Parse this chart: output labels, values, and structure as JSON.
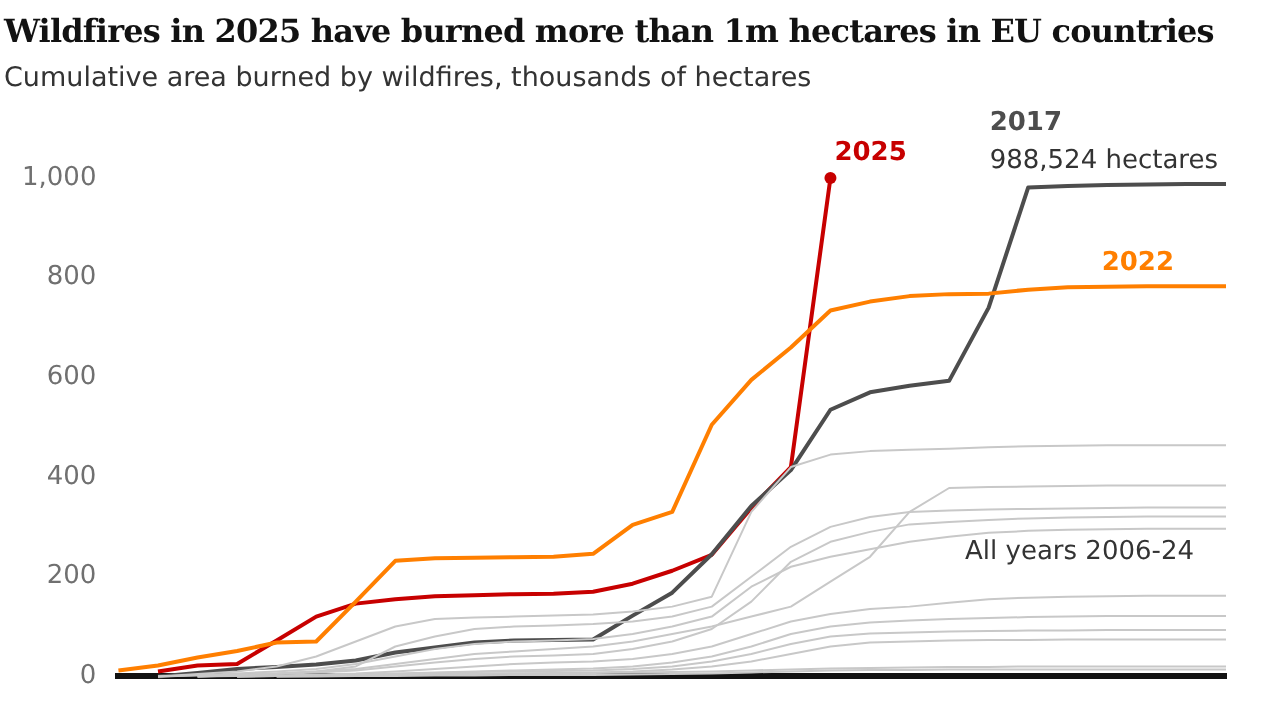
{
  "chart_data": {
    "type": "line",
    "title": "Wildfires in 2025 have burned more than 1m hectares in EU countries",
    "subtitle": "Cumulative area burned by wildfires, thousands of hectares",
    "categories": [
      null,
      null,
      null,
      null,
      null,
      null,
      null,
      null,
      null,
      null,
      null,
      null,
      null,
      null,
      null,
      null,
      null,
      null,
      null,
      null,
      null,
      null,
      null,
      null,
      null,
      null,
      null,
      null,
      null
    ],
    "ylim": [
      0,
      1000
    ],
    "yticks": [
      0,
      200,
      400,
      600,
      800,
      {
        "value": 1000,
        "label": "1,000"
      }
    ],
    "annotations": [
      {
        "text": "988,524 hectares",
        "y": 988
      },
      "All years 2006-24"
    ],
    "series": [
      {
        "color": "#c8c8c8",
        "values": [
          null,
          0,
          5,
          10,
          20,
          40,
          70,
          100,
          115,
          118,
          120,
          122,
          124,
          130,
          140,
          160,
          330,
          420,
          445,
          452,
          455,
          457,
          460,
          462,
          463,
          464,
          464,
          464,
          464
        ]
      },
      {
        "color": "#c8c8c8",
        "values": [
          null,
          0,
          2,
          4,
          6,
          10,
          15,
          25,
          35,
          45,
          50,
          55,
          60,
          70,
          85,
          100,
          120,
          140,
          190,
          240,
          330,
          378,
          380,
          381,
          382,
          383,
          383,
          383,
          383
        ]
      },
      {
        "color": "#c8c8c8",
        "values": [
          null,
          null,
          0,
          3,
          6,
          10,
          20,
          60,
          80,
          95,
          100,
          102,
          105,
          110,
          120,
          140,
          200,
          260,
          300,
          320,
          330,
          333,
          335,
          336,
          337,
          338,
          339,
          339,
          339
        ]
      },
      {
        "color": "#c8c8c8",
        "values": [
          null,
          null,
          0,
          2,
          5,
          8,
          12,
          20,
          28,
          35,
          40,
          42,
          45,
          55,
          70,
          95,
          150,
          230,
          270,
          290,
          305,
          310,
          314,
          317,
          319,
          320,
          321,
          321,
          321
        ]
      },
      {
        "color": "#c8c8c8",
        "values": [
          null,
          0,
          3,
          6,
          10,
          15,
          25,
          40,
          55,
          65,
          70,
          72,
          75,
          85,
          100,
          120,
          180,
          220,
          240,
          255,
          270,
          280,
          288,
          292,
          294,
          295,
          296,
          296,
          296
        ]
      },
      {
        "color": "#c8c8c8",
        "values": [
          null,
          null,
          0,
          1,
          2,
          4,
          6,
          10,
          15,
          20,
          25,
          28,
          30,
          35,
          45,
          60,
          85,
          110,
          125,
          135,
          140,
          148,
          155,
          158,
          160,
          161,
          162,
          162,
          162
        ]
      },
      {
        "color": "#c8c8c8",
        "values": [
          null,
          null,
          null,
          0,
          1,
          2,
          4,
          6,
          8,
          10,
          12,
          14,
          16,
          20,
          28,
          40,
          60,
          85,
          100,
          108,
          112,
          115,
          117,
          119,
          120,
          121,
          121,
          121,
          121
        ]
      },
      {
        "color": "#c8c8c8",
        "values": [
          null,
          null,
          null,
          0,
          1,
          2,
          3,
          5,
          7,
          9,
          10,
          11,
          12,
          15,
          20,
          30,
          45,
          65,
          80,
          86,
          88,
          90,
          91,
          92,
          92,
          93,
          93,
          93,
          93
        ]
      },
      {
        "color": "#c8c8c8",
        "values": [
          null,
          null,
          null,
          null,
          0,
          1,
          2,
          3,
          4,
          5,
          6,
          7,
          8,
          10,
          14,
          20,
          30,
          45,
          60,
          68,
          70,
          72,
          73,
          73,
          74,
          74,
          74,
          74,
          74
        ]
      },
      {
        "color": "#c8c8c8",
        "values": [
          null,
          null,
          null,
          0,
          1,
          2,
          3,
          4,
          5,
          5,
          6,
          6,
          7,
          8,
          9,
          10,
          12,
          14,
          16,
          17,
          18,
          19,
          19,
          20,
          20,
          20,
          20,
          20,
          20
        ]
      },
      {
        "color": "#c8c8c8",
        "values": [
          null,
          null,
          null,
          null,
          0,
          0,
          1,
          1,
          2,
          2,
          3,
          3,
          3,
          4,
          5,
          6,
          8,
          10,
          12,
          13,
          13,
          14,
          14,
          14,
          14,
          14,
          14,
          14,
          14
        ]
      },
      {
        "name": "2022",
        "color": "#ff7f00",
        "values": [
          12,
          22,
          38,
          51,
          68,
          70,
          150,
          232,
          237,
          238,
          239,
          240,
          246,
          304,
          330,
          505,
          595,
          660,
          734,
          752,
          763,
          767,
          768,
          776,
          781,
          782,
          783,
          783,
          783
        ]
      },
      {
        "name": "2017",
        "color": "#4d4d4d",
        "values": [
          null,
          0,
          7,
          15,
          19,
          24,
          32,
          48,
          58,
          68,
          72,
          73,
          74,
          122,
          168,
          245,
          342,
          414,
          535,
          570,
          583,
          593,
          740,
          981,
          984,
          986,
          987,
          988,
          988
        ]
      },
      {
        "name": "2025",
        "type": "line",
        "color": "#c70000",
        "values": [
          null,
          10,
          22,
          25,
          72,
          120,
          146,
          155,
          161,
          163,
          165,
          166,
          170,
          186,
          212,
          244,
          338,
          420,
          1000,
          null,
          null,
          null,
          null,
          null,
          null,
          null,
          null,
          null,
          null
        ]
      }
    ]
  }
}
